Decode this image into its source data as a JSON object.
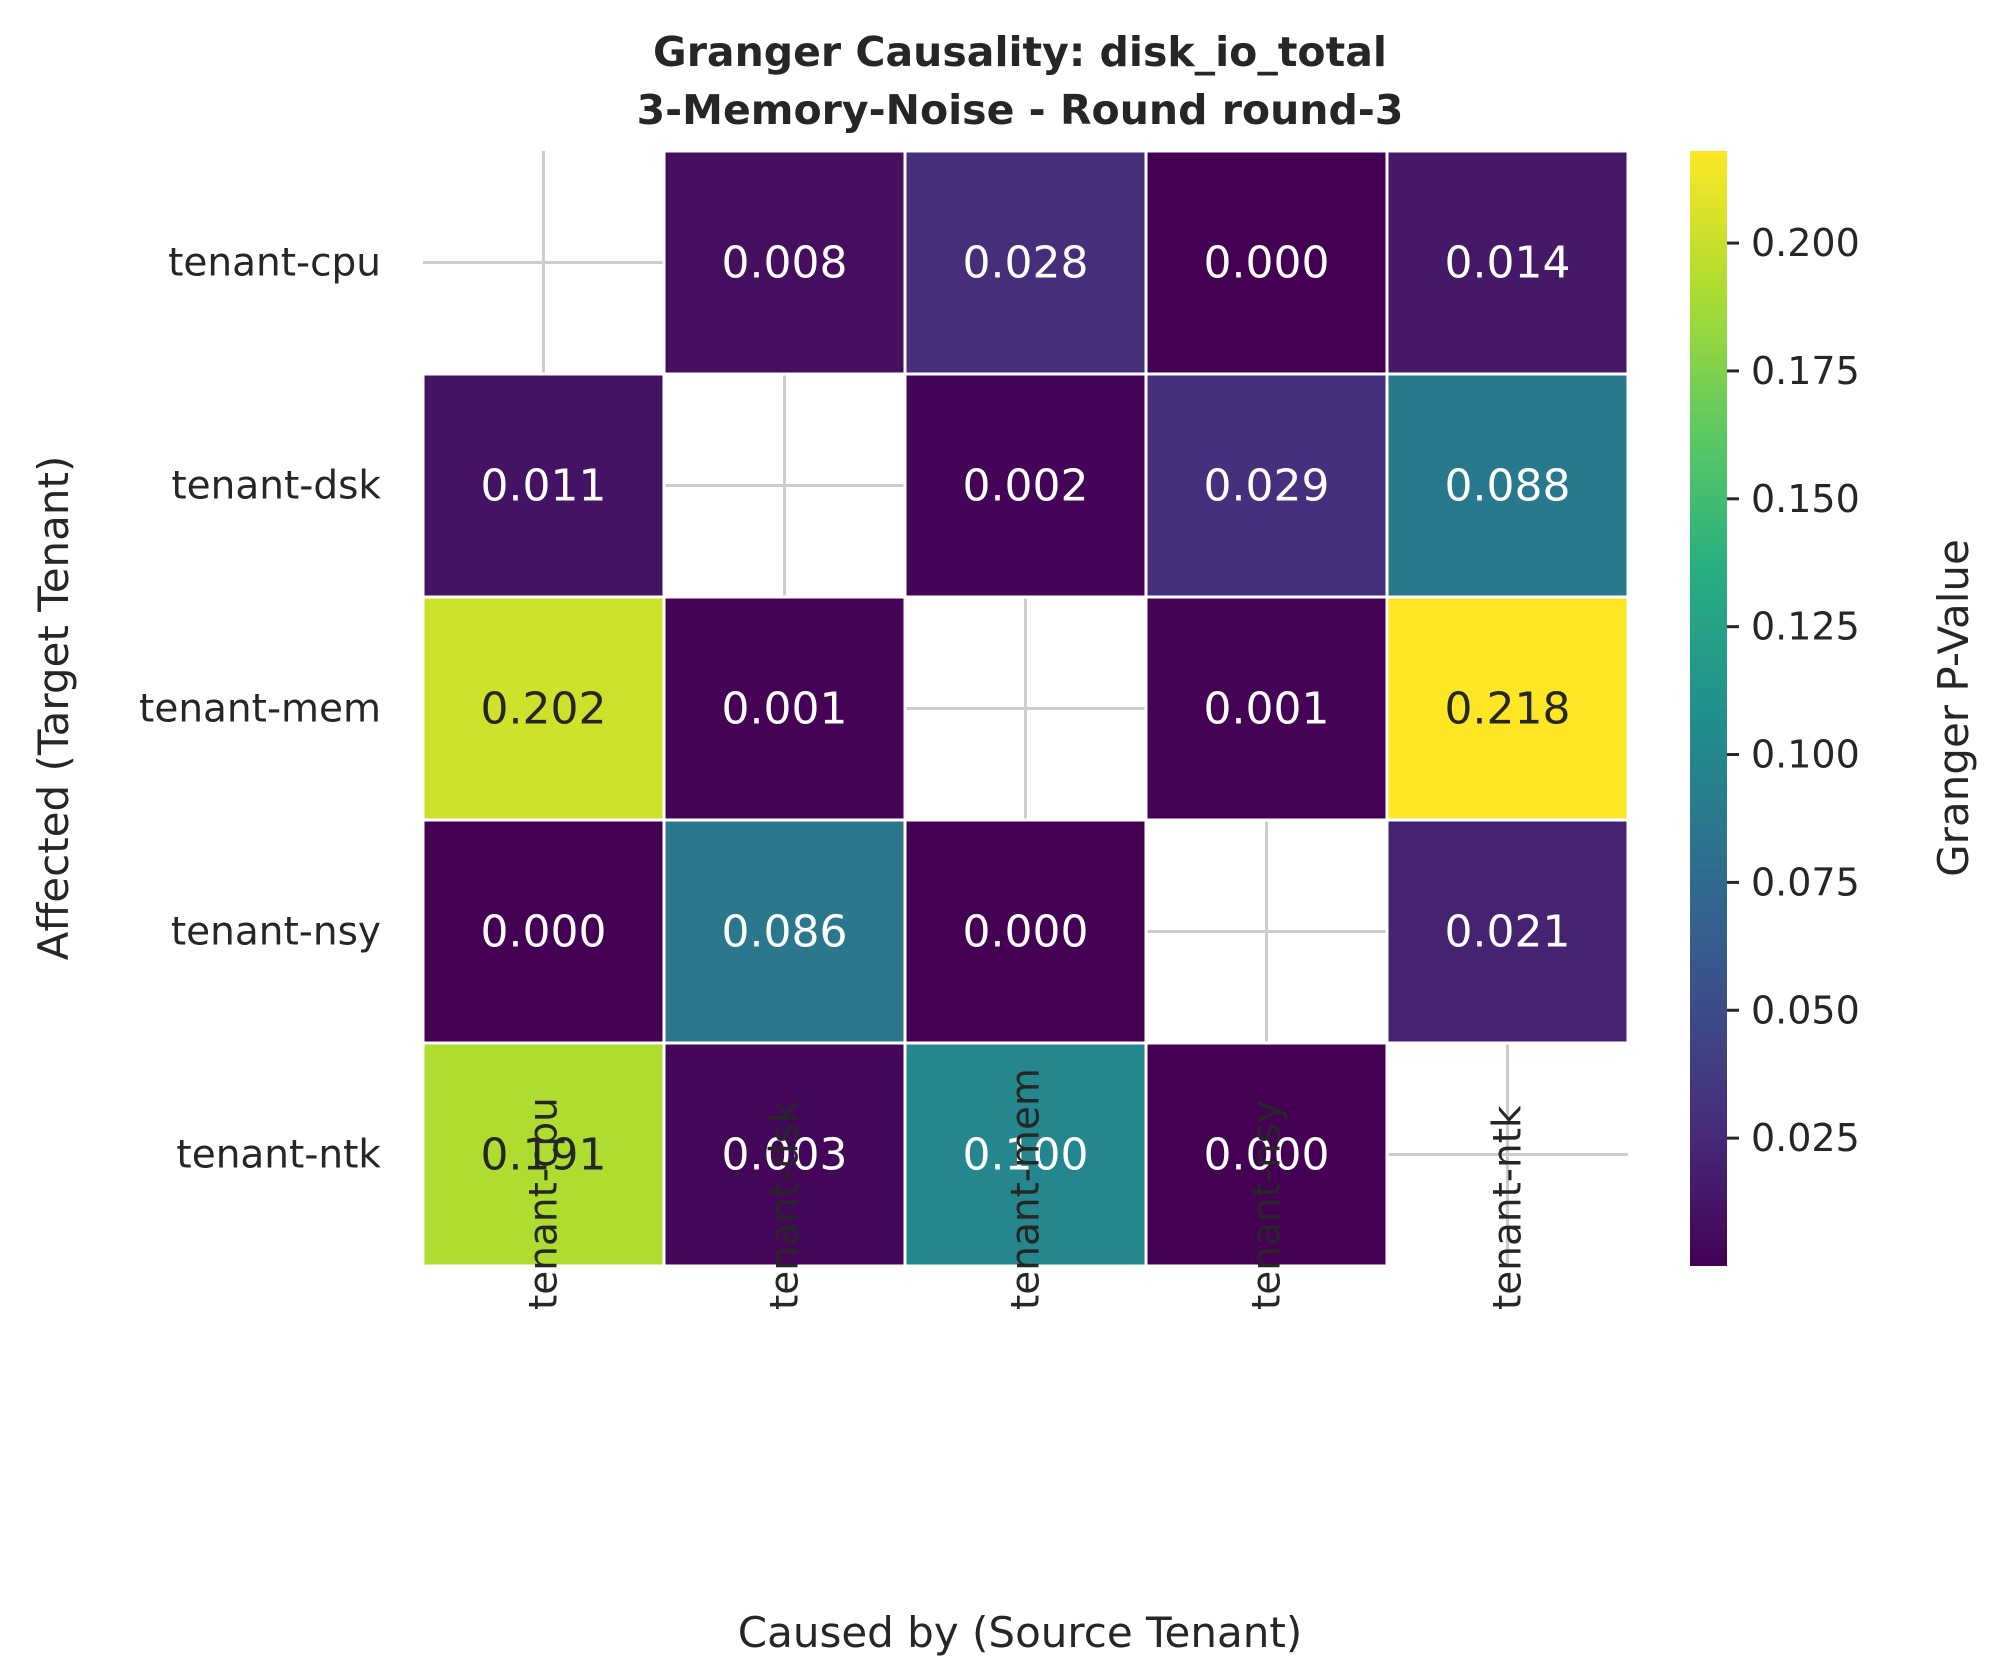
{
  "chart_data": {
    "type": "heatmap",
    "title": "Granger Causality: disk_io_total",
    "subtitle": "3-Memory-Noise - Round round-3",
    "xlabel": "Caused by (Source Tenant)",
    "ylabel": "Affected (Target Tenant)",
    "x_categories": [
      "tenant-cpu",
      "tenant-dsk",
      "tenant-mem",
      "tenant-nsy",
      "tenant-ntk"
    ],
    "y_categories": [
      "tenant-cpu",
      "tenant-dsk",
      "tenant-mem",
      "tenant-nsy",
      "tenant-ntk"
    ],
    "values": [
      [
        null,
        0.008,
        0.028,
        0.0,
        0.014
      ],
      [
        0.011,
        null,
        0.002,
        0.029,
        0.088
      ],
      [
        0.202,
        0.001,
        null,
        0.001,
        0.218
      ],
      [
        0.0,
        0.086,
        0.0,
        null,
        0.021
      ],
      [
        0.191,
        0.003,
        0.1,
        0.0,
        null
      ]
    ],
    "value_labels": [
      [
        "",
        "0.008",
        "0.028",
        "0.000",
        "0.014"
      ],
      [
        "0.011",
        "",
        "0.002",
        "0.029",
        "0.088"
      ],
      [
        "0.202",
        "0.001",
        "",
        "0.001",
        "0.218"
      ],
      [
        "0.000",
        "0.086",
        "0.000",
        "",
        "0.021"
      ],
      [
        "0.191",
        "0.003",
        "0.100",
        "0.000",
        ""
      ]
    ],
    "colormap": "viridis",
    "colorbar": {
      "label": "Granger P-Value",
      "min": 0.0,
      "max": 0.218,
      "ticks": [
        0.025,
        0.05,
        0.075,
        0.1,
        0.125,
        0.15,
        0.175,
        0.2
      ],
      "tick_labels": [
        "0.025",
        "0.050",
        "0.075",
        "0.100",
        "0.125",
        "0.150",
        "0.175",
        "0.200"
      ]
    },
    "grid": true,
    "missing_diagonal": true
  }
}
